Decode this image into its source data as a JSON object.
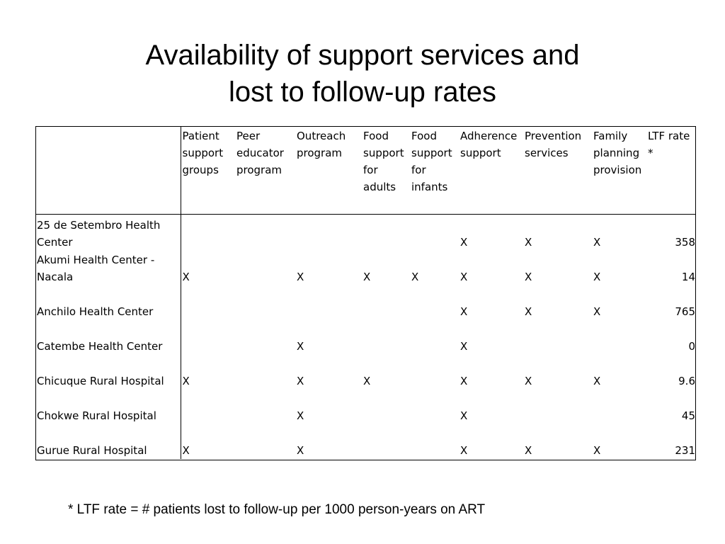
{
  "title": {
    "line1": "Availability of support services and",
    "line2": "lost to follow-up rates"
  },
  "table": {
    "columns": [
      "",
      "Patient support groups",
      "Peer educator program",
      "Outreach program",
      "Food support for adults",
      "Food support for infants",
      "Adherence support",
      "Prevention services",
      "Family planning provision",
      "LTF rate *"
    ],
    "rows": [
      [
        "25 de Setembro Health Center",
        "",
        "",
        "",
        "",
        "",
        "X",
        "X",
        "X",
        "358"
      ],
      [
        "Akumi Health Center - Nacala",
        "X",
        "",
        "X",
        "X",
        "X",
        "X",
        "X",
        "X",
        "14"
      ],
      [
        "Anchilo Health Center",
        "",
        "",
        "",
        "",
        "",
        "X",
        "X",
        "X",
        "765"
      ],
      [
        "Catembe Health Center",
        "",
        "",
        "X",
        "",
        "",
        "X",
        "",
        "",
        "0"
      ],
      [
        "Chicuque Rural Hospital",
        "X",
        "",
        "X",
        "X",
        "",
        "X",
        "X",
        "X",
        "9.6"
      ],
      [
        "Chokwe Rural Hospital",
        "",
        "",
        "X",
        "",
        "",
        "X",
        "",
        "",
        "45"
      ],
      [
        "Gurue Rural Hospital",
        "X",
        "",
        "X",
        "",
        "",
        "X",
        "X",
        "X",
        "231"
      ]
    ]
  },
  "footnote": "* LTF rate = # patients lost to follow-up per 1000 person-years on ART"
}
